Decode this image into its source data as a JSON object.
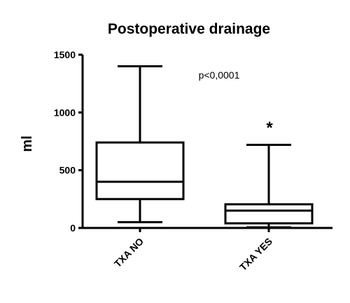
{
  "chart_data": {
    "type": "boxplot",
    "title": "Postoperative drainage",
    "xlabel": "",
    "ylabel": "ml",
    "ylim": [
      0,
      1500
    ],
    "yticks": [
      0,
      500,
      1000,
      1500
    ],
    "categories": [
      "TXA NO",
      "TXA YES"
    ],
    "boxes": [
      {
        "label": "TXA NO",
        "min": 50,
        "q1": 250,
        "median": 400,
        "q3": 740,
        "max": 1400
      },
      {
        "label": "TXA YES",
        "min": 5,
        "q1": 40,
        "median": 150,
        "q3": 205,
        "max": 720
      }
    ],
    "annotations": {
      "pvalue": "p<0,0001",
      "significance_marker": "*"
    },
    "grid": false,
    "legend": "none"
  },
  "colors": {
    "stroke": "#000000",
    "background": "#ffffff"
  }
}
